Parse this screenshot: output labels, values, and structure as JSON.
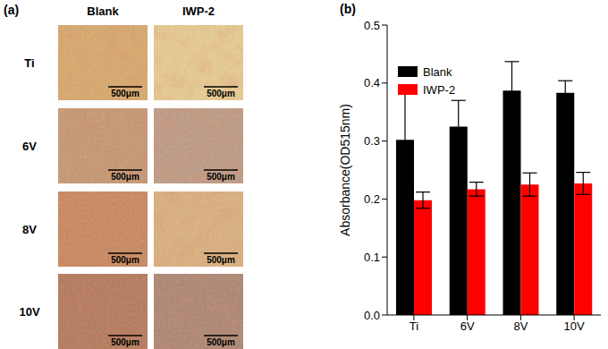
{
  "panel_a": {
    "label": "(a)",
    "columns": [
      "Blank",
      "IWP-2"
    ],
    "rows": [
      "Ti",
      "6V",
      "8V",
      "10V"
    ],
    "scale_bar": "500μm"
  },
  "chart_data": {
    "type": "bar",
    "annotations": [
      "(b)"
    ],
    "ylabel": "Absorbance(OD515nm)",
    "categories": [
      "Ti",
      "6V",
      "8V",
      "10V"
    ],
    "series": [
      {
        "name": "Blank",
        "color": "#000000",
        "values": [
          0.302,
          0.325,
          0.387,
          0.383
        ],
        "errors": [
          0.086,
          0.045,
          0.05,
          0.021
        ]
      },
      {
        "name": "IWP-2",
        "color": "#ff0000",
        "values": [
          0.198,
          0.217,
          0.225,
          0.227
        ],
        "errors": [
          0.014,
          0.012,
          0.02,
          0.019
        ]
      }
    ],
    "ylim": [
      0,
      0.5
    ],
    "yticks": [
      {
        "value": 0,
        "label": "0.0"
      },
      0.1,
      0.2,
      0.3,
      0.4,
      0.5
    ],
    "legend": "upper left"
  }
}
